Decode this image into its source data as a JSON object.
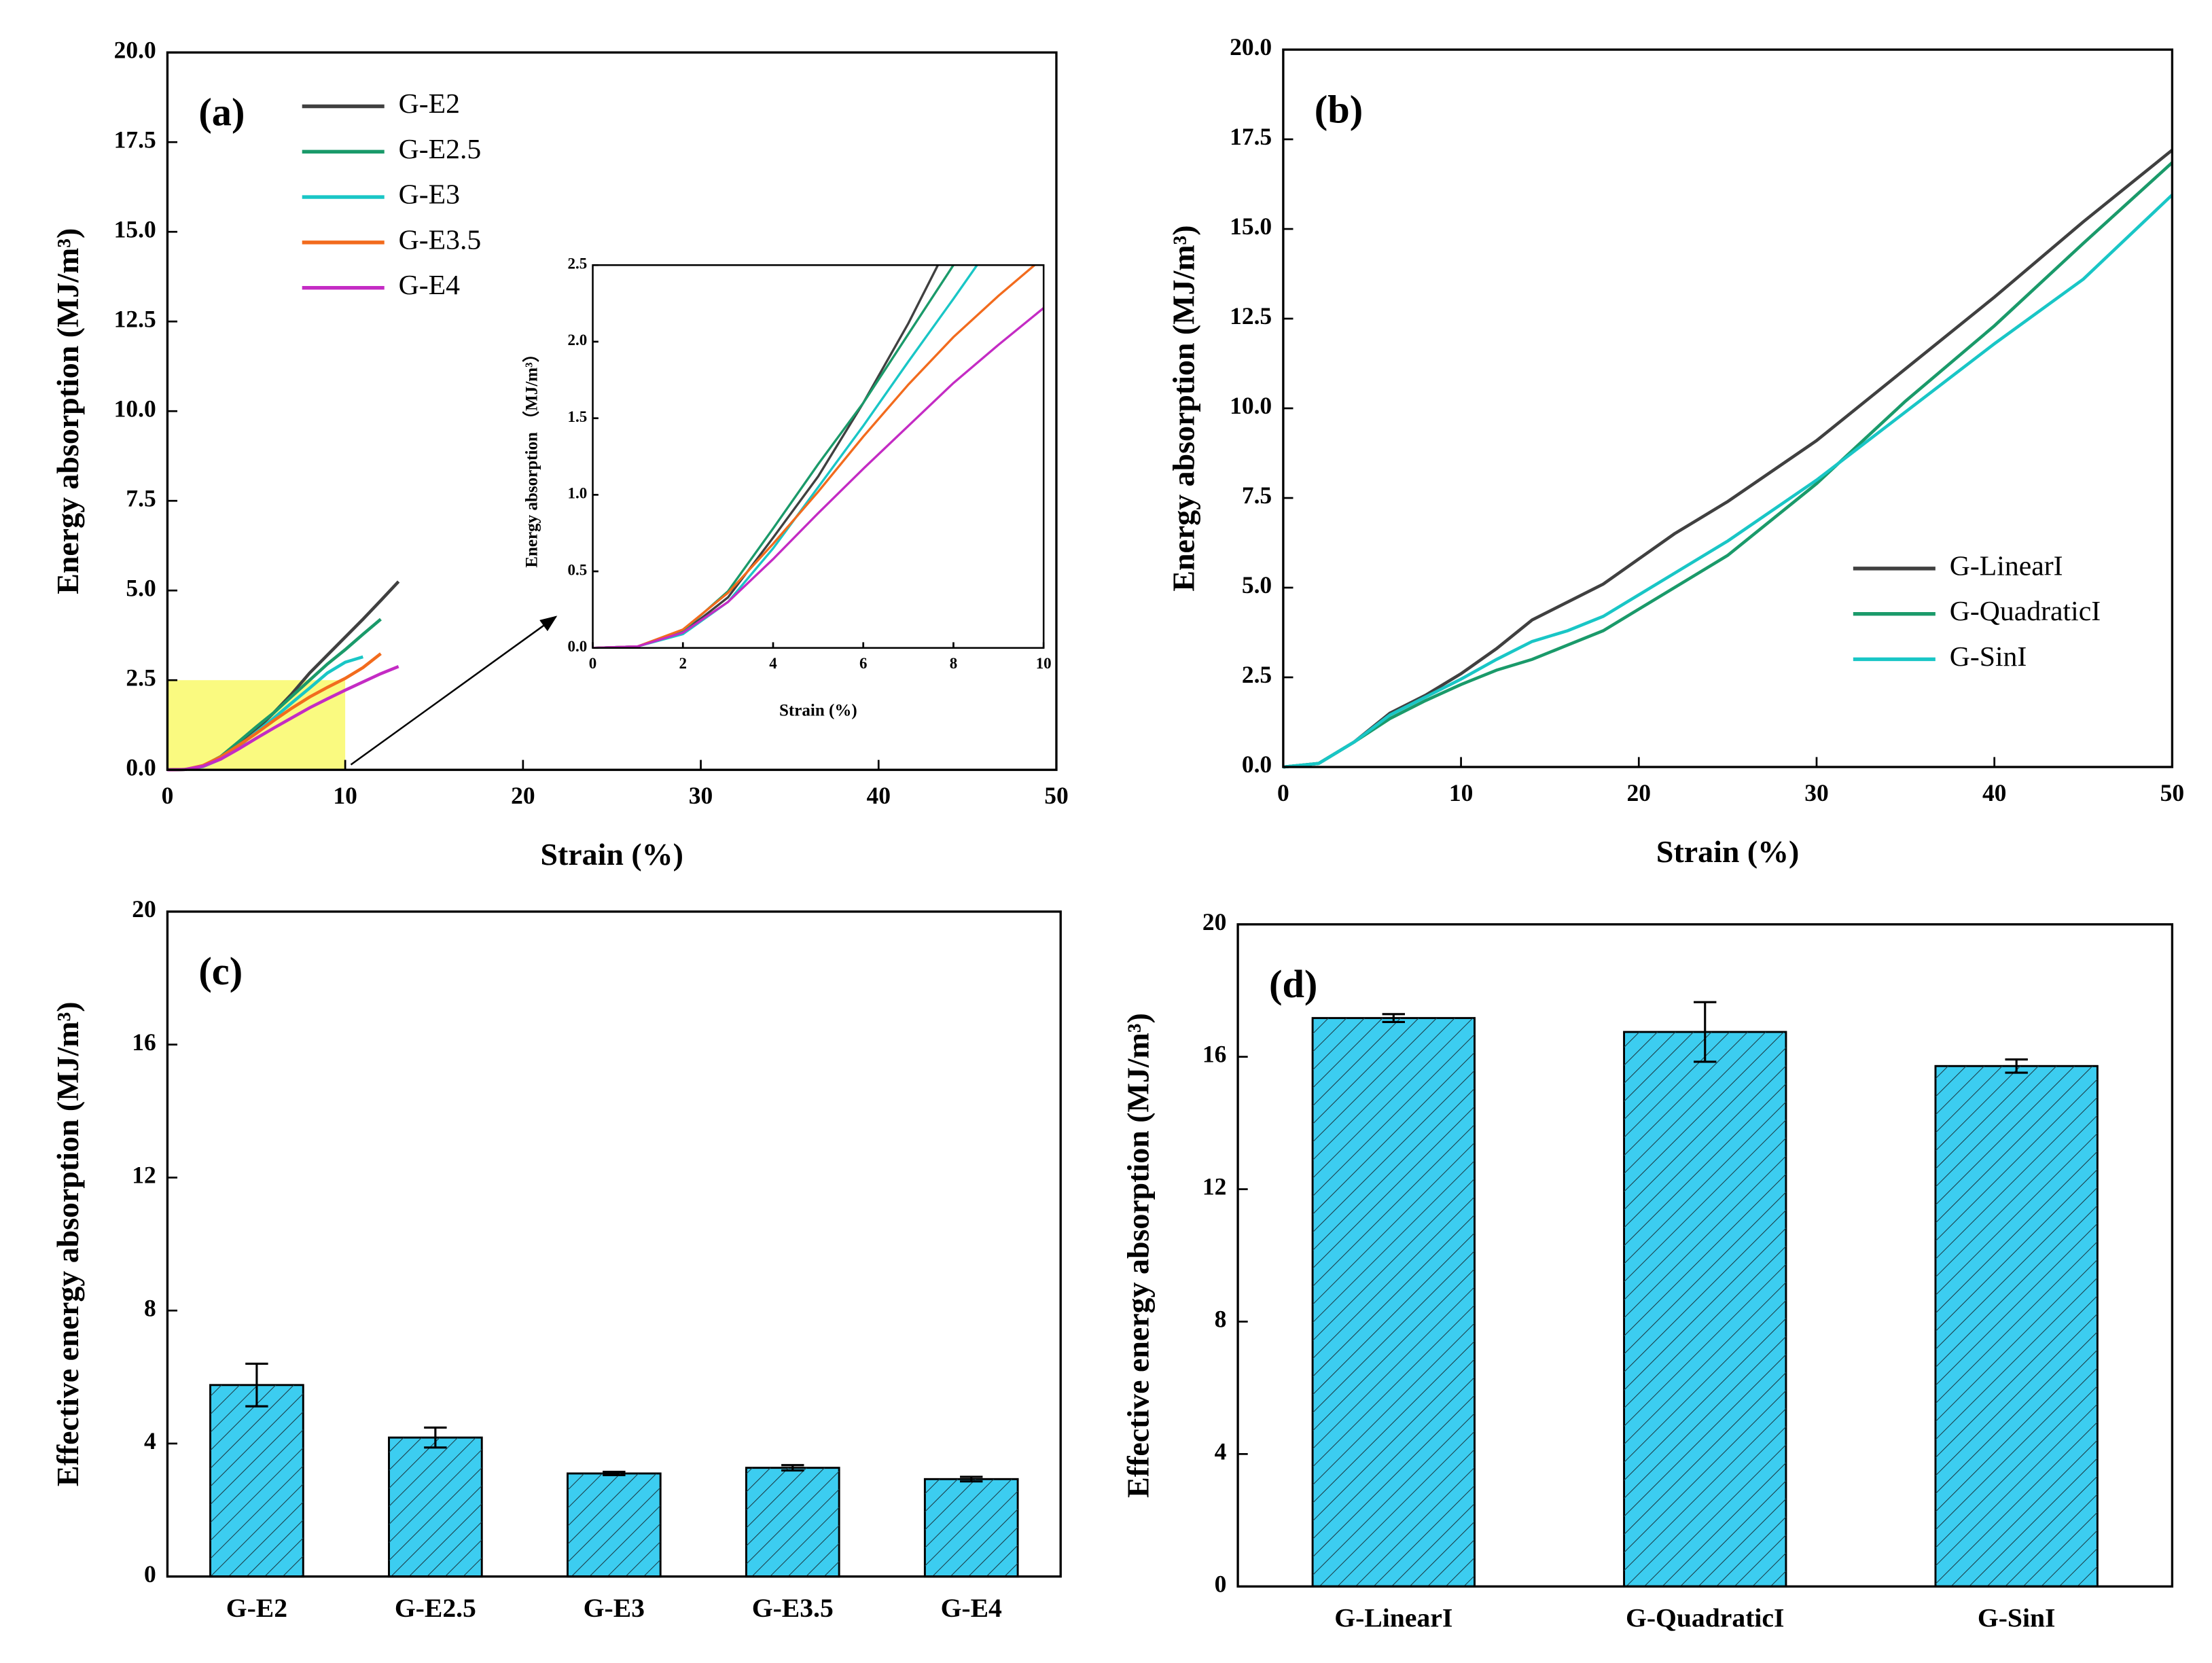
{
  "chart_data": [
    {
      "type": "line",
      "annotation": "(a)",
      "xlabel": "Strain (%)",
      "ylabel": "Energy absorption (MJ/m³)",
      "xlim": [
        0,
        50
      ],
      "ylim": [
        0,
        20
      ],
      "xticks": [
        0,
        10,
        20,
        30,
        40,
        50
      ],
      "yticks": [
        {
          "value": 0,
          "label": "0.0"
        },
        2.5,
        {
          "value": 5,
          "label": "5.0"
        },
        7.5,
        {
          "value": 10,
          "label": "10.0"
        },
        12.5,
        {
          "value": 15,
          "label": "15.0"
        },
        17.5,
        {
          "value": 20,
          "label": "20.0"
        }
      ],
      "legend": "upper left",
      "x": [
        0,
        1,
        2,
        3,
        4,
        5,
        6,
        7,
        8,
        9,
        10,
        11,
        12,
        13
      ],
      "series": [
        {
          "name": "G-E2",
          "color": "#404040",
          "values": [
            0,
            0.01,
            0.1,
            0.33,
            0.72,
            1.12,
            1.6,
            2.12,
            2.7,
            3.2,
            3.7,
            4.2,
            4.72,
            5.25
          ]
        },
        {
          "name": "G-E2.5",
          "color": "#1a9a6a",
          "values": [
            0,
            0.01,
            0.11,
            0.37,
            0.78,
            1.2,
            1.6,
            2.05,
            2.5,
            2.95,
            3.35,
            3.78,
            4.2,
            null
          ]
        },
        {
          "name": "G-E3",
          "color": "#19c6c6",
          "values": [
            0,
            0.01,
            0.09,
            0.3,
            0.65,
            1.05,
            1.45,
            1.87,
            2.28,
            2.7,
            3.0,
            3.15,
            null,
            null
          ]
        },
        {
          "name": "G-E3.5",
          "color": "#f26b1d",
          "values": [
            0,
            0.01,
            0.12,
            0.36,
            0.68,
            1.02,
            1.38,
            1.72,
            2.03,
            2.3,
            2.55,
            2.85,
            3.24,
            null
          ]
        },
        {
          "name": "G-E4",
          "color": "#c42bc4",
          "values": [
            0,
            0.01,
            0.1,
            0.3,
            0.58,
            0.88,
            1.17,
            1.45,
            1.73,
            1.98,
            2.22,
            2.45,
            2.68,
            2.88
          ]
        }
      ],
      "inset": {
        "xlabel": "Strain (%)",
        "ylabel": "Energy absorption （MJ/m³）",
        "xlim": [
          0,
          10
        ],
        "ylim": [
          0,
          2.5
        ],
        "xticks": [
          0,
          2,
          4,
          6,
          8,
          10
        ],
        "yticks": [
          {
            "value": 0,
            "label": "0.0"
          },
          0.5,
          {
            "value": 1,
            "label": "1.0"
          },
          1.5,
          {
            "value": 2,
            "label": "2.0"
          },
          2.5
        ],
        "highlight_color": "#fafa80"
      }
    },
    {
      "type": "line",
      "annotation": "(b)",
      "xlabel": "Strain (%)",
      "ylabel": "Energy absorption (MJ/m³)",
      "xlim": [
        0,
        50
      ],
      "ylim": [
        0,
        20
      ],
      "xticks": [
        0,
        10,
        20,
        30,
        40,
        50
      ],
      "yticks": [
        {
          "value": 0,
          "label": "0.0"
        },
        2.5,
        {
          "value": 5,
          "label": "5.0"
        },
        7.5,
        {
          "value": 10,
          "label": "10.0"
        },
        12.5,
        {
          "value": 15,
          "label": "15.0"
        },
        17.5,
        {
          "value": 20,
          "label": "20.0"
        }
      ],
      "legend": "lower right",
      "x": [
        0,
        2,
        4,
        6,
        8,
        10,
        12,
        14,
        16,
        18,
        20,
        22,
        25,
        30,
        35,
        40,
        45,
        50
      ],
      "series": [
        {
          "name": "G-LinearI",
          "color": "#404040",
          "values": [
            0,
            0.1,
            0.7,
            1.5,
            2.0,
            2.6,
            3.3,
            4.1,
            4.6,
            5.1,
            5.8,
            6.5,
            7.4,
            9.1,
            11.1,
            13.1,
            15.2,
            17.2
          ]
        },
        {
          "name": "G-QuadraticI",
          "color": "#1a9a6a",
          "values": [
            0,
            0.1,
            0.7,
            1.35,
            1.85,
            2.3,
            2.7,
            3.0,
            3.4,
            3.8,
            4.4,
            5.0,
            5.9,
            7.9,
            10.2,
            12.3,
            14.6,
            16.85
          ]
        },
        {
          "name": "G-SinI",
          "color": "#19c6c6",
          "values": [
            0,
            0.1,
            0.7,
            1.45,
            1.95,
            2.45,
            3.0,
            3.5,
            3.8,
            4.2,
            4.8,
            5.4,
            6.3,
            8.0,
            9.9,
            11.8,
            13.6,
            15.95
          ]
        }
      ]
    },
    {
      "type": "bar",
      "annotation": "(c)",
      "ylabel": "Effective energy absorption (MJ/m³)",
      "ylim": [
        0,
        20
      ],
      "yticks": [
        0,
        4,
        8,
        12,
        16,
        20
      ],
      "color": "#3ccdf0",
      "categories": [
        "G-E2",
        "G-E2.5",
        "G-E3",
        "G-E3.5",
        "G-E4"
      ],
      "values": [
        5.76,
        4.18,
        3.1,
        3.27,
        2.93
      ],
      "errors": [
        0.64,
        0.3,
        0.05,
        0.08,
        0.07
      ]
    },
    {
      "type": "bar",
      "annotation": "(d)",
      "ylabel": "Effective energy absorption (MJ/m³)",
      "ylim": [
        0,
        20
      ],
      "yticks": [
        0,
        4,
        8,
        12,
        16,
        20
      ],
      "color": "#3ccdf0",
      "categories": [
        "G-LinearI",
        "G-QuadraticI",
        "G-SinI"
      ],
      "values": [
        17.17,
        16.75,
        15.72
      ],
      "errors": [
        0.12,
        0.9,
        0.2
      ]
    }
  ]
}
